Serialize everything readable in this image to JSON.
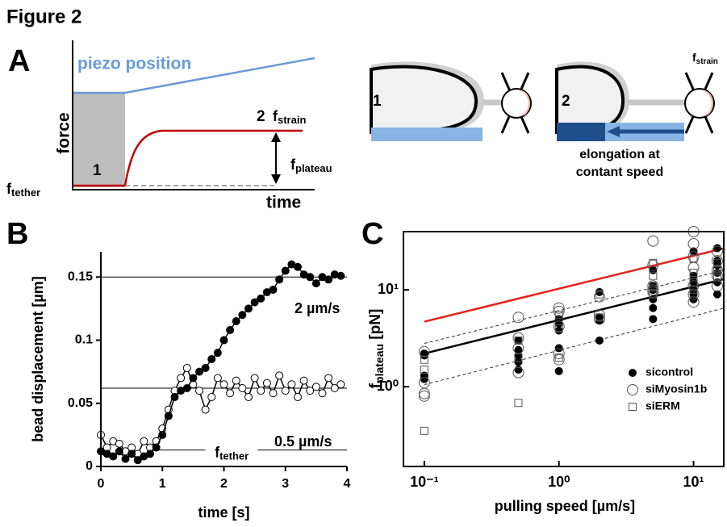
{
  "figure_title": "Figure 2",
  "panel_a": {
    "letter": "A",
    "piezo": "piezo position",
    "force": "force",
    "time": "time",
    "step1": "1",
    "step2": "2",
    "f_strain": {
      "main": "f",
      "sub": "strain"
    },
    "f_plateau": {
      "main": "f",
      "sub": "plateau"
    },
    "f_tether": {
      "main": "f",
      "sub": "tether"
    },
    "cartoon": {
      "step1": "1",
      "step2": "2",
      "f_strain": {
        "main": "f",
        "sub": "strain"
      },
      "caption": [
        "elongation at",
        "contant speed"
      ]
    }
  },
  "chart_data": [
    {
      "type": "line",
      "letter": "B",
      "xlabel": "time [s]",
      "ylabel": "bead displacement [µm]",
      "xlim": [
        0,
        4
      ],
      "ylim": [
        0,
        0.17
      ],
      "xticks": [
        0,
        1,
        2,
        3,
        4
      ],
      "yticks": [
        0,
        0.05,
        0.1,
        0.15
      ],
      "reference_lines": [
        0.15,
        0.062,
        0.013
      ],
      "reference_label": {
        "main": "f",
        "sub": "tether"
      },
      "x": [
        0,
        0.1,
        0.2,
        0.3,
        0.4,
        0.5,
        0.6,
        0.7,
        0.8,
        0.9,
        1,
        1.1,
        1.2,
        1.3,
        1.4,
        1.5,
        1.6,
        1.7,
        1.8,
        1.9,
        2,
        2.1,
        2.2,
        2.3,
        2.4,
        2.5,
        2.6,
        2.7,
        2.8,
        2.9,
        3,
        3.1,
        3.2,
        3.3,
        3.4,
        3.5,
        3.6,
        3.7,
        3.8,
        3.9
      ],
      "series": [
        {
          "name": "0.5 µm/s",
          "color": "#ffffff",
          "values": [
            0.025,
            0.015,
            0.02,
            0.018,
            0.012,
            0.015,
            0.01,
            0.02,
            0.015,
            0.02,
            0.03,
            0.045,
            0.06,
            0.07,
            0.078,
            0.065,
            0.06,
            0.045,
            0.055,
            0.07,
            0.065,
            0.058,
            0.068,
            0.062,
            0.055,
            0.07,
            0.06,
            0.066,
            0.058,
            0.072,
            0.06,
            0.065,
            0.055,
            0.068,
            0.06,
            0.063,
            0.058,
            0.07,
            0.062,
            0.065
          ]
        },
        {
          "name": "2 µm/s",
          "color": "#000000",
          "values": [
            0.012,
            0.01,
            0.008,
            0.012,
            0.006,
            0.01,
            0.005,
            0.008,
            0.01,
            0.015,
            0.025,
            0.04,
            0.055,
            0.06,
            0.062,
            0.07,
            0.075,
            0.078,
            0.085,
            0.09,
            0.1,
            0.108,
            0.115,
            0.12,
            0.125,
            0.13,
            0.133,
            0.138,
            0.14,
            0.148,
            0.155,
            0.16,
            0.158,
            0.152,
            0.15,
            0.145,
            0.15,
            0.148,
            0.152,
            0.151
          ]
        }
      ]
    },
    {
      "type": "scatter",
      "letter": "C",
      "xlabel": "pulling speed [µm/s]",
      "ylabel": {
        "main": "f",
        "sub": "plateau",
        "rest": " [pN]"
      },
      "log_x": true,
      "log_y": true,
      "xlim": [
        0.07,
        17
      ],
      "ylim": [
        0.15,
        40
      ],
      "xticks": [
        {
          "value": 0.1,
          "label": "10⁻¹"
        },
        {
          "value": 1,
          "label": "10⁰"
        },
        {
          "value": 10,
          "label": "10¹"
        }
      ],
      "yticks": [
        {
          "value": 1,
          "label": "10⁰"
        },
        {
          "value": 10,
          "label": "10¹"
        }
      ],
      "legend": "lower right",
      "series": [
        {
          "name": "sicontrol",
          "marker": "filled-circle",
          "color": "#000000",
          "x": [
            0.1,
            0.1,
            0.1,
            0.1,
            0.5,
            0.5,
            0.5,
            0.5,
            0.5,
            1,
            1,
            1,
            1,
            1,
            2,
            2,
            2,
            2,
            5,
            5,
            5,
            5,
            5,
            5,
            10,
            10,
            10,
            10,
            10,
            10,
            15,
            15,
            15,
            15,
            15,
            15
          ],
          "values": [
            2.2,
            1.3,
            1.2,
            2.1,
            3,
            2.4,
            1.8,
            1.5,
            2.1,
            5,
            4.5,
            3.8,
            1.45,
            2.5,
            9.5,
            5.2,
            4.8,
            3,
            16,
            10,
            8,
            6.5,
            5,
            11,
            25,
            14,
            12,
            10,
            8,
            9,
            27,
            20,
            18,
            15,
            12,
            9
          ]
        },
        {
          "name": "siMyosin1b",
          "marker": "open-circle",
          "color": "#555555",
          "x": [
            0.1,
            0.1,
            0.1,
            0.1,
            0.5,
            0.5,
            0.5,
            0.5,
            1,
            1,
            1,
            1,
            1,
            2,
            2,
            2,
            5,
            5,
            5,
            5,
            5,
            10,
            10,
            10,
            10,
            10,
            10,
            10,
            15,
            15,
            15,
            15,
            15
          ],
          "values": [
            2.3,
            1.1,
            0.85,
            0.8,
            5.2,
            3.2,
            2.5,
            1.4,
            6.5,
            6,
            4.2,
            2.2,
            1.9,
            8.5,
            5.5,
            5,
            32,
            18,
            11,
            10,
            9.5,
            40,
            30,
            22,
            17,
            11,
            9,
            7.5,
            25,
            20,
            16,
            14,
            11
          ]
        },
        {
          "name": "siERM",
          "marker": "open-square",
          "color": "#555555",
          "x": [
            0.1,
            0.1,
            0.1,
            0.5,
            0.5,
            0.5,
            1,
            1,
            1,
            2,
            2,
            5,
            5,
            5,
            5,
            10,
            10,
            10,
            10,
            15,
            15,
            15
          ],
          "values": [
            1.9,
            1.5,
            0.35,
            3,
            2,
            0.68,
            5.5,
            4,
            2,
            9,
            5.2,
            19,
            14,
            11,
            9,
            21,
            15,
            12,
            10,
            19,
            16,
            14
          ]
        }
      ],
      "fit_lines": [
        {
          "color": "#e8201a",
          "dashed": false,
          "x": [
            0.1,
            17
          ],
          "values": [
            4.7,
            27
          ]
        },
        {
          "color": "#000000",
          "dashed": false,
          "x": [
            0.1,
            17
          ],
          "values": [
            2.2,
            13
          ]
        },
        {
          "color": "#333333",
          "dashed": true,
          "x": [
            0.1,
            17
          ],
          "values": [
            2.8,
            16
          ]
        },
        {
          "color": "#333333",
          "dashed": true,
          "x": [
            0.1,
            17
          ],
          "values": [
            1.05,
            6.5
          ]
        }
      ]
    }
  ]
}
